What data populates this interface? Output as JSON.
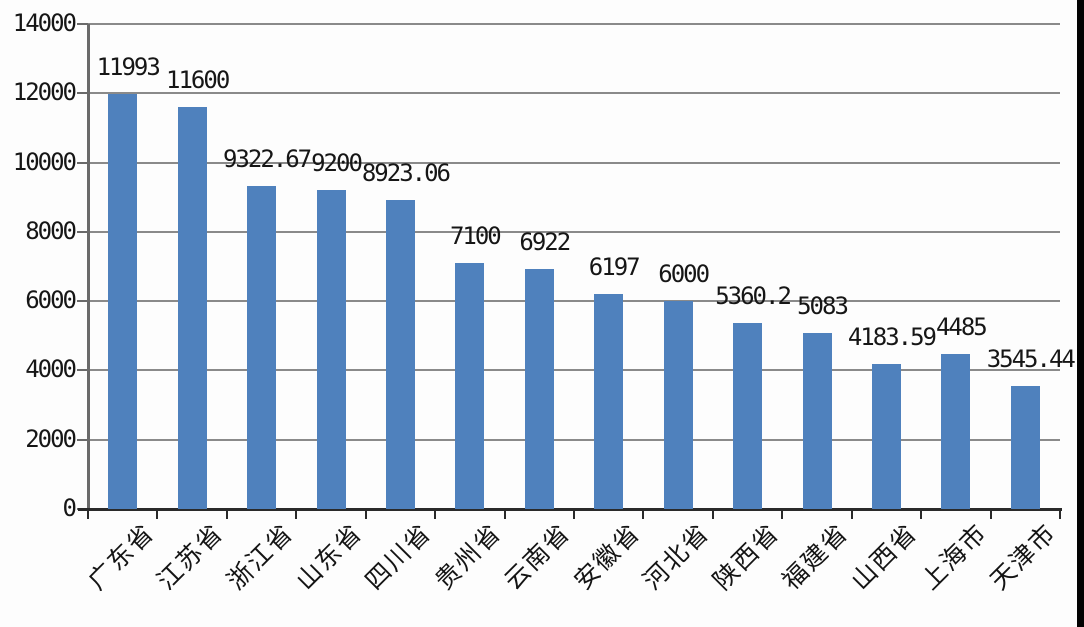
{
  "chart_data": {
    "type": "bar",
    "title": "",
    "xlabel": "",
    "ylabel": "",
    "categories": [
      "广东省",
      "江苏省",
      "浙江省",
      "山东省",
      "四川省",
      "贵州省",
      "云南省",
      "安徽省",
      "河北省",
      "陕西省",
      "福建省",
      "山西省",
      "上海市",
      "天津市"
    ],
    "values": [
      11993,
      11600,
      9322.67,
      9200,
      8923.06,
      7100,
      6922,
      6197,
      6000,
      5360.2,
      5083,
      4183.59,
      4485,
      3545.44
    ],
    "value_labels": [
      "11993",
      "11600",
      "9322.67",
      "9200",
      "8923.06",
      "7100",
      "6922",
      "6197",
      "6000",
      "5360.2",
      "5083",
      "4183.59",
      "4485",
      "3545.44"
    ],
    "ylim": [
      0,
      14000
    ],
    "yticks": [
      0,
      2000,
      4000,
      6000,
      8000,
      10000,
      12000,
      14000
    ],
    "grid": true,
    "legend_position": "none",
    "colors": {
      "bar": "#4F81BD",
      "gridline": "#8a8a8a",
      "y_axis_line": "#6a6a6a",
      "x_axis_line": "#2a2a2a",
      "text": "#161616",
      "background": "#fdfdfd",
      "right_edge_strip": "#020202"
    }
  }
}
